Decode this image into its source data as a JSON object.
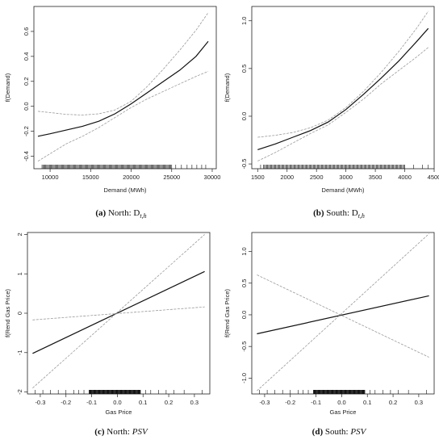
{
  "figure": {
    "captions": [
      {
        "tag": "(a)",
        "text": "North: D",
        "sub": "t,h",
        "italic": ""
      },
      {
        "tag": "(b)",
        "text": "South: D",
        "sub": "t,h",
        "italic": ""
      },
      {
        "tag": "(c)",
        "text": "North: ",
        "sub": "",
        "italic": "PSV"
      },
      {
        "tag": "(d)",
        "text": "South: ",
        "sub": "",
        "italic": "PSV"
      }
    ]
  },
  "chart_data": [
    {
      "type": "line",
      "xlabel": "Demand (MWh)",
      "ylabel": "f(Demand)",
      "xlim": [
        8000,
        30500
      ],
      "ylim": [
        -0.5,
        0.8
      ],
      "xticks": [
        10000,
        15000,
        20000,
        25000,
        30000
      ],
      "xtick_labels": [
        "10000",
        "15000",
        "20000",
        "25000",
        "30000"
      ],
      "yticks": [
        -0.4,
        -0.2,
        0.0,
        0.2,
        0.4,
        0.6
      ],
      "ytick_labels": [
        "-0.4",
        "-0.2",
        "0.0",
        "0.2",
        "0.4",
        "0.6"
      ],
      "grid": false,
      "series": [
        {
          "role": "estimate",
          "color": "#111111",
          "x": [
            8500,
            10000,
            12000,
            14000,
            16000,
            18000,
            20000,
            22000,
            24000,
            26000,
            28000,
            29500
          ],
          "y": [
            -0.24,
            -0.22,
            -0.19,
            -0.16,
            -0.12,
            -0.06,
            0.02,
            0.11,
            0.2,
            0.29,
            0.4,
            0.52
          ]
        },
        {
          "role": "upper-band",
          "color": "#9a9a9a",
          "x": [
            8500,
            10000,
            12000,
            14000,
            16000,
            18000,
            20000,
            22000,
            24000,
            26000,
            28000,
            29500
          ],
          "y": [
            -0.04,
            -0.05,
            -0.065,
            -0.07,
            -0.06,
            -0.03,
            0.04,
            0.16,
            0.3,
            0.45,
            0.61,
            0.75
          ]
        },
        {
          "role": "lower-band",
          "color": "#9a9a9a",
          "x": [
            8500,
            10000,
            12000,
            14000,
            16000,
            18000,
            20000,
            22000,
            24000,
            26000,
            28000,
            29500
          ],
          "y": [
            -0.44,
            -0.38,
            -0.3,
            -0.24,
            -0.17,
            -0.09,
            -0.01,
            0.06,
            0.12,
            0.18,
            0.24,
            0.28
          ]
        }
      ],
      "rug": {
        "from": 9000,
        "to": 29200,
        "dense_from": 9000,
        "dense_to": 25000,
        "sparse": [
          25500,
          26200,
          26900,
          27500,
          28100,
          28700,
          29200
        ]
      }
    },
    {
      "type": "line",
      "xlabel": "Demand (MWh)",
      "ylabel": "f(Demand)",
      "xlim": [
        1400,
        4500
      ],
      "ylim": [
        -0.55,
        1.15
      ],
      "xticks": [
        1500,
        2000,
        2500,
        3000,
        3500,
        4000,
        4500
      ],
      "xtick_labels": [
        "1500",
        "2000",
        "2500",
        "3000",
        "3500",
        "4000",
        "4500"
      ],
      "yticks": [
        -0.5,
        0.0,
        0.5,
        1.0
      ],
      "ytick_labels": [
        "-0.5",
        "0.0",
        "0.5",
        "1.0"
      ],
      "grid": false,
      "series": [
        {
          "role": "estimate",
          "color": "#111111",
          "x": [
            1500,
            1800,
            2100,
            2400,
            2700,
            3000,
            3300,
            3600,
            3900,
            4200,
            4400
          ],
          "y": [
            -0.35,
            -0.29,
            -0.22,
            -0.15,
            -0.06,
            0.07,
            0.23,
            0.4,
            0.58,
            0.78,
            0.92
          ]
        },
        {
          "role": "upper-band",
          "color": "#9a9a9a",
          "x": [
            1500,
            1800,
            2100,
            2400,
            2700,
            3000,
            3300,
            3600,
            3900,
            4200,
            4400
          ],
          "y": [
            -0.22,
            -0.2,
            -0.17,
            -0.12,
            -0.04,
            0.09,
            0.26,
            0.46,
            0.68,
            0.92,
            1.1
          ]
        },
        {
          "role": "lower-band",
          "color": "#9a9a9a",
          "x": [
            1500,
            1800,
            2100,
            2400,
            2700,
            3000,
            3300,
            3600,
            3900,
            4200,
            4400
          ],
          "y": [
            -0.47,
            -0.38,
            -0.28,
            -0.18,
            -0.09,
            0.04,
            0.18,
            0.34,
            0.48,
            0.62,
            0.72
          ]
        }
      ],
      "rug": {
        "from": 1550,
        "to": 4400,
        "dense_from": 1600,
        "dense_to": 4000,
        "sparse": [
          1550,
          4150,
          4300,
          4400
        ]
      }
    },
    {
      "type": "line",
      "xlabel": "Gas Price",
      "ylabel": "f(Rend Gas Price)",
      "xlim": [
        -0.35,
        0.36
      ],
      "ylim": [
        -2.05,
        2.05
      ],
      "xticks": [
        -0.3,
        -0.2,
        -0.1,
        0.0,
        0.1,
        0.2,
        0.3
      ],
      "xtick_labels": [
        "-0.3",
        "-0.2",
        "-0.1",
        "0.0",
        "0.1",
        "0.2",
        "0.3"
      ],
      "yticks": [
        -2,
        -1,
        0,
        1,
        2
      ],
      "ytick_labels": [
        "-2",
        "-1",
        "0",
        "1",
        "2"
      ],
      "grid": false,
      "series": [
        {
          "role": "estimate",
          "color": "#111111",
          "x": [
            -0.33,
            0.34
          ],
          "y": [
            -1.02,
            1.06
          ]
        },
        {
          "role": "upper-band",
          "color": "#9a9a9a",
          "x": [
            -0.33,
            0.34
          ],
          "y": [
            -1.9,
            2.0
          ]
        },
        {
          "role": "lower-band",
          "color": "#9a9a9a",
          "x": [
            -0.33,
            0.34
          ],
          "y": [
            -0.17,
            0.16
          ]
        }
      ],
      "rug": {
        "from": -0.33,
        "to": 0.34,
        "dense_from": -0.11,
        "dense_to": 0.09,
        "sparse": [
          -0.32,
          -0.29,
          -0.26,
          -0.23,
          -0.2,
          -0.17,
          -0.15,
          -0.13,
          0.11,
          0.13,
          0.16,
          0.19,
          0.22,
          0.26,
          0.33
        ]
      }
    },
    {
      "type": "line",
      "xlabel": "Gas Price",
      "ylabel": "f(Rend Gas Price)",
      "xlim": [
        -0.35,
        0.36
      ],
      "ylim": [
        -1.25,
        1.3
      ],
      "xticks": [
        -0.3,
        -0.2,
        -0.1,
        0.0,
        0.1,
        0.2,
        0.3
      ],
      "xtick_labels": [
        "-0.3",
        "-0.2",
        "-0.1",
        "0.0",
        "0.1",
        "0.2",
        "0.3"
      ],
      "yticks": [
        -1.0,
        -0.5,
        0.0,
        0.5,
        1.0
      ],
      "ytick_labels": [
        "-1.0",
        "-0.5",
        "0.0",
        "0.5",
        "1.0"
      ],
      "grid": false,
      "series": [
        {
          "role": "estimate",
          "color": "#111111",
          "x": [
            -0.33,
            0.34
          ],
          "y": [
            -0.3,
            0.3
          ]
        },
        {
          "role": "upper-band",
          "color": "#9a9a9a",
          "x": [
            -0.33,
            0.34
          ],
          "y": [
            -1.2,
            1.28
          ]
        },
        {
          "role": "lower-band",
          "color": "#9a9a9a",
          "x": [
            -0.33,
            0.34
          ],
          "y": [
            0.63,
            -0.67
          ]
        }
      ],
      "rug": {
        "from": -0.33,
        "to": 0.34,
        "dense_from": -0.11,
        "dense_to": 0.09,
        "sparse": [
          -0.32,
          -0.29,
          -0.26,
          -0.23,
          -0.2,
          -0.17,
          -0.15,
          -0.13,
          0.11,
          0.13,
          0.16,
          0.19,
          0.22,
          0.26,
          0.33
        ]
      }
    }
  ]
}
